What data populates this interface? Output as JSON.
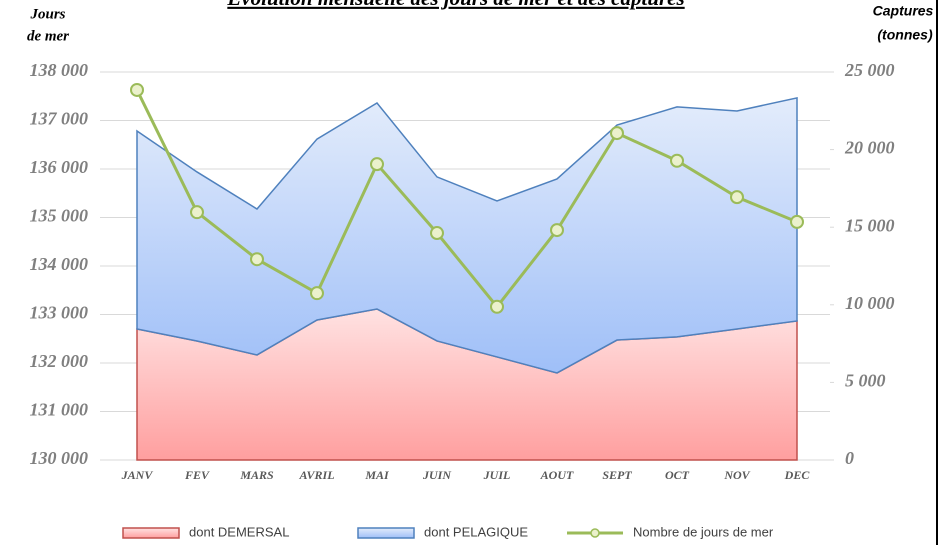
{
  "chart_data": {
    "type": "area",
    "title": "Evolution mensuelle des jours de mer et des captures",
    "ylabel": [
      "Jours",
      "de mer"
    ],
    "y2label": [
      "Captures",
      "(tonnes)"
    ],
    "categories": [
      "JANV",
      "FEV",
      "MARS",
      "AVRIL",
      "MAI",
      "JUIN",
      "JUIL",
      "AOUT",
      "SEPT",
      "OCT",
      "NOV",
      "DEC"
    ],
    "stacked": true,
    "series": [
      {
        "name": "dont DEMERSAL",
        "type": "area",
        "axis": "y2",
        "color": "#ff9f9f",
        "values": [
          8440,
          7670,
          6770,
          9020,
          9730,
          7670,
          6640,
          5610,
          7730,
          7930,
          8440,
          8960
        ]
      },
      {
        "name": "dont PELAGIQUE",
        "type": "area",
        "axis": "y2",
        "color": "#a3c2f7",
        "values": [
          12760,
          10890,
          9400,
          11660,
          13270,
          10570,
          10050,
          12500,
          13850,
          14820,
          14050,
          14370
        ]
      },
      {
        "name": "Nombre de jours de mer",
        "type": "line",
        "axis": "y",
        "color": "#9bbb59",
        "values": [
          137630,
          135110,
          134140,
          133440,
          136100,
          134680,
          133160,
          134740,
          136740,
          136170,
          135420,
          134910
        ]
      }
    ],
    "ylim": [
      130000,
      138000
    ],
    "yticks": [
      {
        "value": 130000,
        "label": "130 000"
      },
      {
        "value": 131000,
        "label": "131 000"
      },
      {
        "value": 132000,
        "label": "132 000"
      },
      {
        "value": 133000,
        "label": "133 000"
      },
      {
        "value": 134000,
        "label": "134 000"
      },
      {
        "value": 135000,
        "label": "135 000"
      },
      {
        "value": 136000,
        "label": "136 000"
      },
      {
        "value": 137000,
        "label": "137 000"
      },
      {
        "value": 138000,
        "label": "138 000"
      }
    ],
    "y2lim": [
      0,
      25000
    ],
    "y2ticks": [
      0,
      {
        "value": 5000,
        "label": "5 000"
      },
      {
        "value": 10000,
        "label": "10 000"
      },
      {
        "value": 15000,
        "label": "15 000"
      },
      {
        "value": 20000,
        "label": "20 000"
      },
      {
        "value": 25000,
        "label": "25 000"
      }
    ],
    "grid": true,
    "legend": "bottom"
  }
}
